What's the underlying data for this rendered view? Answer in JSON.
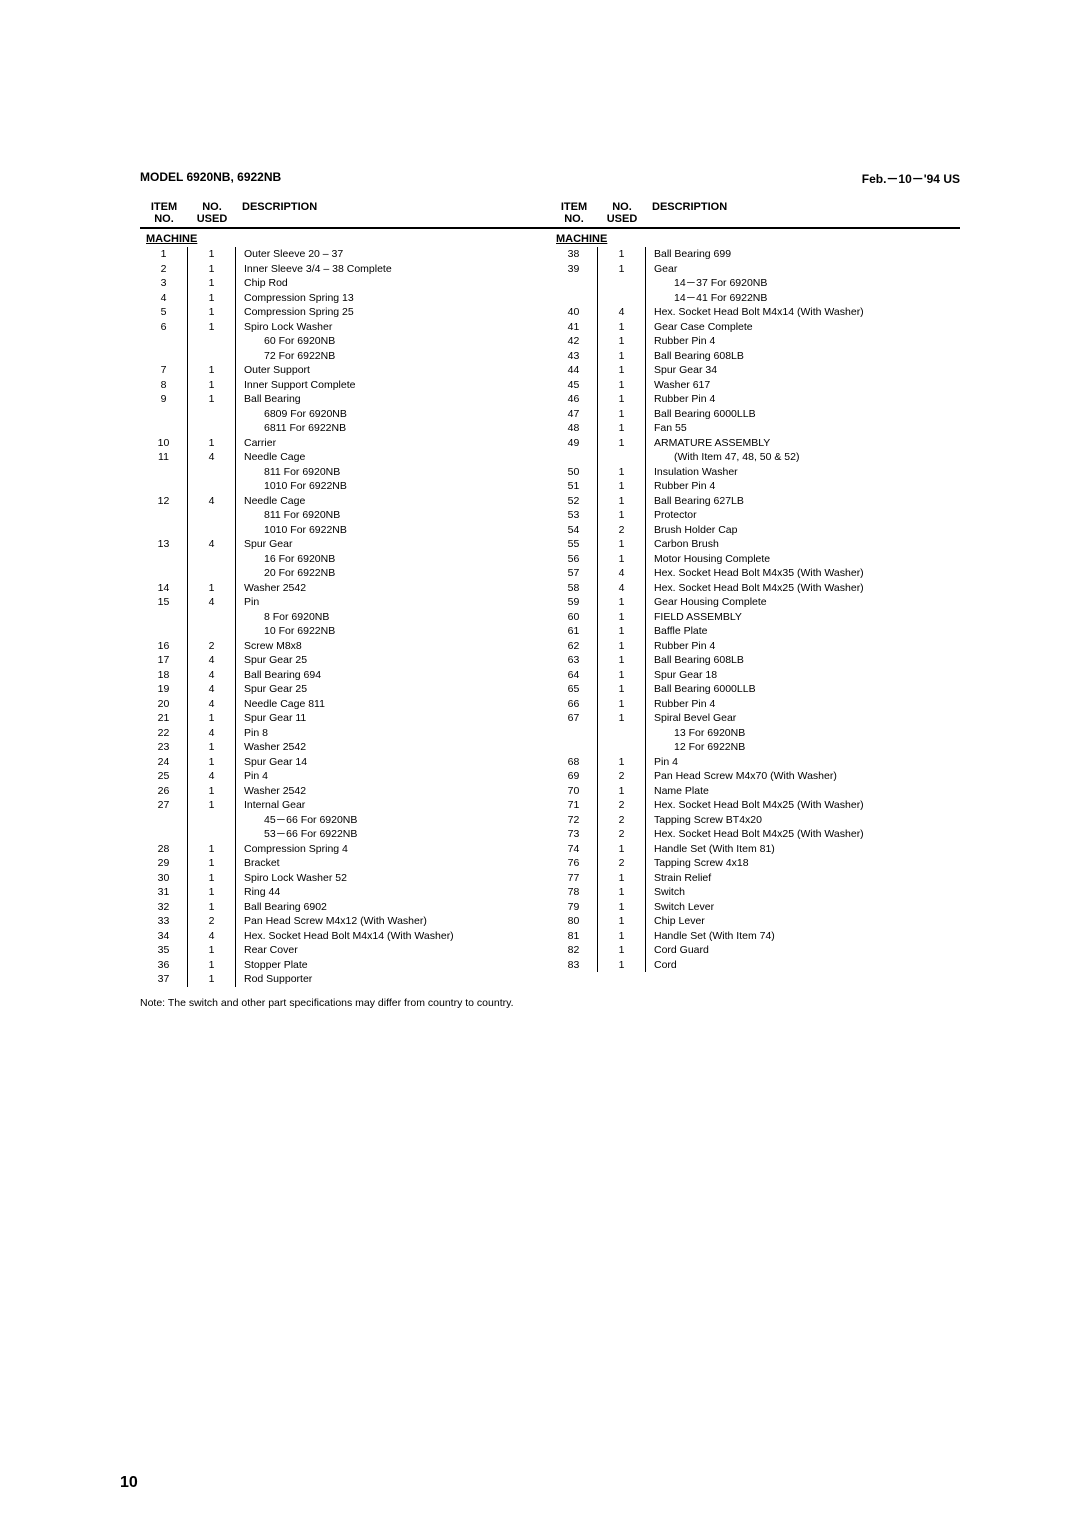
{
  "header": {
    "model": "MODEL 6920NB, 6922NB",
    "date": "Feb.－10－'94  US"
  },
  "colHeaders": {
    "item": "ITEM NO.",
    "used": "NO. USED",
    "desc": "DESCRIPTION"
  },
  "sectionTitle": "MACHINE",
  "left": [
    {
      "i": "1",
      "u": "1",
      "d": "Outer Sleeve 20 – 37"
    },
    {
      "i": "2",
      "u": "1",
      "d": "Inner Sleeve 3/4 – 38 Complete"
    },
    {
      "i": "3",
      "u": "1",
      "d": "Chip Rod"
    },
    {
      "i": "4",
      "u": "1",
      "d": "Compression Spring 13"
    },
    {
      "i": "5",
      "u": "1",
      "d": "Compression Spring 25"
    },
    {
      "i": "6",
      "u": "1",
      "d": "Spiro Lock Washer"
    },
    {
      "i": "",
      "u": "",
      "d": "60   For 6920NB",
      "sub": true
    },
    {
      "i": "",
      "u": "",
      "d": "72   For 6922NB",
      "sub": true
    },
    {
      "i": "7",
      "u": "1",
      "d": "Outer Support"
    },
    {
      "i": "8",
      "u": "1",
      "d": "Inner Support Complete"
    },
    {
      "i": "9",
      "u": "1",
      "d": "Ball Bearing"
    },
    {
      "i": "",
      "u": "",
      "d": "6809   For 6920NB",
      "sub": true
    },
    {
      "i": "",
      "u": "",
      "d": "6811   For 6922NB",
      "sub": true
    },
    {
      "i": "10",
      "u": "1",
      "d": "Carrier"
    },
    {
      "i": "11",
      "u": "4",
      "d": "Needle Cage"
    },
    {
      "i": "",
      "u": "",
      "d": "811   For 6920NB",
      "sub": true
    },
    {
      "i": "",
      "u": "",
      "d": "1010   For 6922NB",
      "sub": true
    },
    {
      "i": "12",
      "u": "4",
      "d": "Needle Cage"
    },
    {
      "i": "",
      "u": "",
      "d": "811   For 6920NB",
      "sub": true
    },
    {
      "i": "",
      "u": "",
      "d": "1010   For 6922NB",
      "sub": true
    },
    {
      "i": "13",
      "u": "4",
      "d": "Spur Gear"
    },
    {
      "i": "",
      "u": "",
      "d": "16   For 6920NB",
      "sub": true
    },
    {
      "i": "",
      "u": "",
      "d": "20   For 6922NB",
      "sub": true
    },
    {
      "i": "14",
      "u": "1",
      "d": "Washer 2542"
    },
    {
      "i": "15",
      "u": "4",
      "d": "Pin"
    },
    {
      "i": "",
      "u": "",
      "d": "8   For 6920NB",
      "sub": true
    },
    {
      "i": "",
      "u": "",
      "d": "10   For 6922NB",
      "sub": true
    },
    {
      "i": "16",
      "u": "2",
      "d": "Screw M8x8"
    },
    {
      "i": "17",
      "u": "4",
      "d": "Spur Gear 25"
    },
    {
      "i": "18",
      "u": "4",
      "d": "Ball Bearing 694"
    },
    {
      "i": "19",
      "u": "4",
      "d": "Spur Gear 25"
    },
    {
      "i": "20",
      "u": "4",
      "d": "Needle Cage 811"
    },
    {
      "i": "21",
      "u": "1",
      "d": "Spur Gear 11"
    },
    {
      "i": "22",
      "u": "4",
      "d": "Pin 8"
    },
    {
      "i": "23",
      "u": "1",
      "d": "Washer 2542"
    },
    {
      "i": "24",
      "u": "1",
      "d": "Spur Gear 14"
    },
    {
      "i": "25",
      "u": "4",
      "d": "Pin 4"
    },
    {
      "i": "26",
      "u": "1",
      "d": "Washer 2542"
    },
    {
      "i": "27",
      "u": "1",
      "d": "Internal Gear"
    },
    {
      "i": "",
      "u": "",
      "d": "45－66   For 6920NB",
      "sub": true
    },
    {
      "i": "",
      "u": "",
      "d": "53－66   For 6922NB",
      "sub": true
    },
    {
      "i": "28",
      "u": "1",
      "d": "Compression Spring 4"
    },
    {
      "i": "29",
      "u": "1",
      "d": "Bracket"
    },
    {
      "i": "30",
      "u": "1",
      "d": "Spiro Lock Washer 52"
    },
    {
      "i": "31",
      "u": "1",
      "d": "Ring 44"
    },
    {
      "i": "32",
      "u": "1",
      "d": "Ball Bearing 6902"
    },
    {
      "i": "33",
      "u": "2",
      "d": "Pan Head Screw M4x12 (With Washer)"
    },
    {
      "i": "34",
      "u": "4",
      "d": "Hex. Socket Head Bolt M4x14 (With Washer)"
    },
    {
      "i": "35",
      "u": "1",
      "d": "Rear Cover"
    },
    {
      "i": "36",
      "u": "1",
      "d": "Stopper Plate"
    },
    {
      "i": "37",
      "u": "1",
      "d": "Rod Supporter"
    }
  ],
  "right": [
    {
      "i": "38",
      "u": "1",
      "d": "Ball Bearing 699"
    },
    {
      "i": "39",
      "u": "1",
      "d": "Gear"
    },
    {
      "i": "",
      "u": "",
      "d": "14－37   For 6920NB",
      "sub": true
    },
    {
      "i": "",
      "u": "",
      "d": "14－41   For 6922NB",
      "sub": true
    },
    {
      "i": "40",
      "u": "4",
      "d": "Hex. Socket Head Bolt M4x14 (With Washer)"
    },
    {
      "i": "41",
      "u": "1",
      "d": "Gear Case Complete"
    },
    {
      "i": "42",
      "u": "1",
      "d": "Rubber Pin 4"
    },
    {
      "i": "43",
      "u": "1",
      "d": "Ball Bearing 608LB"
    },
    {
      "i": "44",
      "u": "1",
      "d": "Spur Gear 34"
    },
    {
      "i": "45",
      "u": "1",
      "d": "Washer 617"
    },
    {
      "i": "46",
      "u": "1",
      "d": "Rubber Pin 4"
    },
    {
      "i": "47",
      "u": "1",
      "d": "Ball Bearing 6000LLB"
    },
    {
      "i": "48",
      "u": "1",
      "d": "Fan 55"
    },
    {
      "i": "49",
      "u": "1",
      "d": "ARMATURE ASSEMBLY"
    },
    {
      "i": "",
      "u": "",
      "d": "(With Item 47, 48, 50 & 52)",
      "sub": true
    },
    {
      "i": "50",
      "u": "1",
      "d": "Insulation Washer"
    },
    {
      "i": "51",
      "u": "1",
      "d": "Rubber Pin 4"
    },
    {
      "i": "52",
      "u": "1",
      "d": "Ball Bearing 627LB"
    },
    {
      "i": "53",
      "u": "1",
      "d": "Protector"
    },
    {
      "i": "54",
      "u": "2",
      "d": "Brush Holder Cap"
    },
    {
      "i": "55",
      "u": "1",
      "d": "Carbon Brush"
    },
    {
      "i": "56",
      "u": "1",
      "d": "Motor Housing Complete"
    },
    {
      "i": "57",
      "u": "4",
      "d": "Hex. Socket Head Bolt M4x35 (With Washer)"
    },
    {
      "i": "58",
      "u": "4",
      "d": "Hex. Socket Head Bolt M4x25 (With Washer)"
    },
    {
      "i": "59",
      "u": "1",
      "d": "Gear Housing Complete"
    },
    {
      "i": "60",
      "u": "1",
      "d": "FIELD ASSEMBLY"
    },
    {
      "i": "61",
      "u": "1",
      "d": "Baffle Plate"
    },
    {
      "i": "62",
      "u": "1",
      "d": "Rubber Pin 4"
    },
    {
      "i": "63",
      "u": "1",
      "d": "Ball Bearing 608LB"
    },
    {
      "i": "64",
      "u": "1",
      "d": "Spur Gear 18"
    },
    {
      "i": "65",
      "u": "1",
      "d": "Ball Bearing 6000LLB"
    },
    {
      "i": "66",
      "u": "1",
      "d": "Rubber Pin 4"
    },
    {
      "i": "67",
      "u": "1",
      "d": "Spiral Bevel Gear"
    },
    {
      "i": "",
      "u": "",
      "d": "13   For 6920NB",
      "sub": true
    },
    {
      "i": "",
      "u": "",
      "d": "12   For 6922NB",
      "sub": true
    },
    {
      "i": "68",
      "u": "1",
      "d": "Pin 4"
    },
    {
      "i": "69",
      "u": "2",
      "d": "Pan Head Screw M4x70 (With Washer)"
    },
    {
      "i": "70",
      "u": "1",
      "d": "Name Plate"
    },
    {
      "i": "71",
      "u": "2",
      "d": "Hex. Socket Head Bolt M4x25 (With Washer)"
    },
    {
      "i": "72",
      "u": "2",
      "d": "Tapping Screw BT4x20"
    },
    {
      "i": "73",
      "u": "2",
      "d": "Hex. Socket Head Bolt M4x25 (With Washer)"
    },
    {
      "i": "74",
      "u": "1",
      "d": "Handle Set (With Item 81)"
    },
    {
      "i": "76",
      "u": "2",
      "d": "Tapping Screw 4x18"
    },
    {
      "i": "77",
      "u": "1",
      "d": "Strain Relief"
    },
    {
      "i": "78",
      "u": "1",
      "d": "Switch"
    },
    {
      "i": "79",
      "u": "1",
      "d": "Switch Lever"
    },
    {
      "i": "80",
      "u": "1",
      "d": "Chip Lever"
    },
    {
      "i": "81",
      "u": "1",
      "d": "Handle Set (With Item 74)"
    },
    {
      "i": "82",
      "u": "1",
      "d": "Cord Guard"
    },
    {
      "i": "83",
      "u": "1",
      "d": "Cord"
    }
  ],
  "note": "Note: The switch and other part specifications may differ from country to country.",
  "pageNumber": "10"
}
